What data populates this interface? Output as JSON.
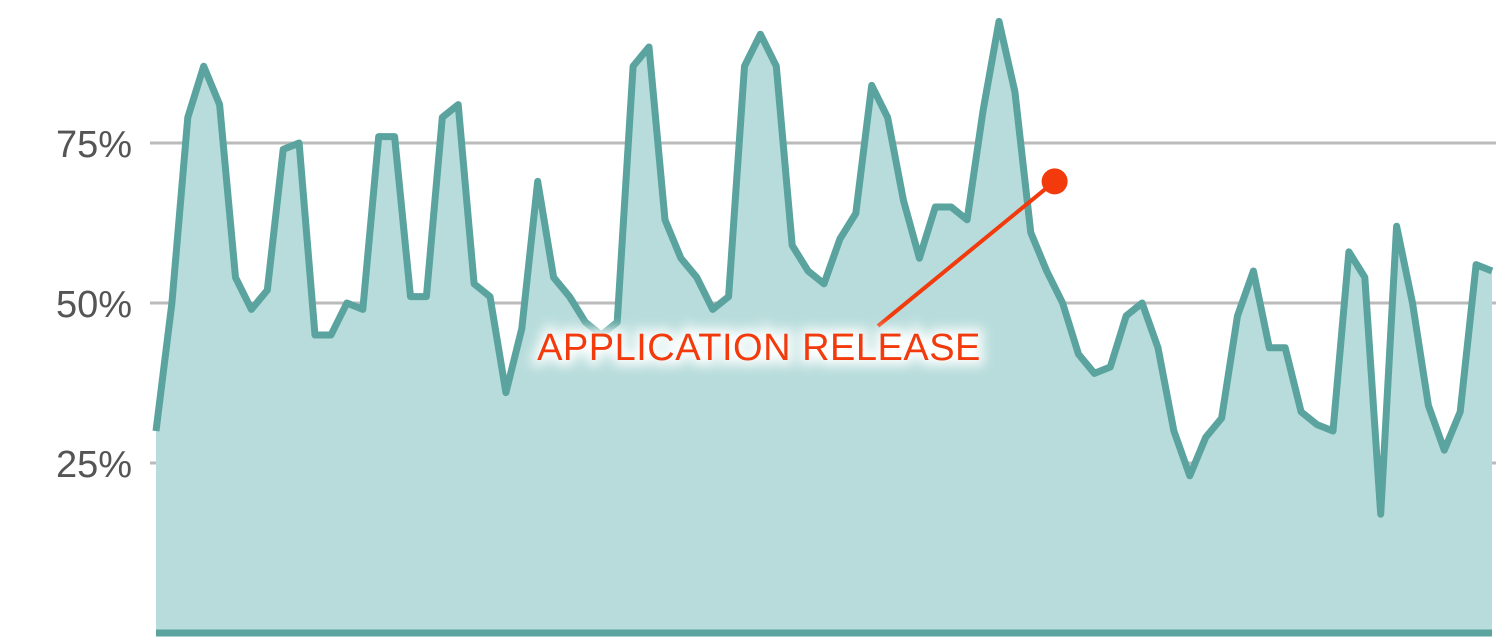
{
  "chart_data": {
    "type": "area",
    "title": "",
    "xlabel": "",
    "ylabel": "",
    "ylim": [
      0,
      100
    ],
    "y_ticks": [
      {
        "value": 25,
        "label": "25%"
      },
      {
        "value": 50,
        "label": "50%"
      },
      {
        "value": 75,
        "label": "75%"
      }
    ],
    "grid": true,
    "legend": "none",
    "colors": {
      "line": "#5aa39f",
      "fill": "#b7dcdb",
      "grid": "#bbbbbb",
      "annotation": "#f23a0c"
    },
    "values": [
      30,
      50,
      79,
      87,
      81,
      54,
      49,
      52,
      74,
      75,
      45,
      45,
      50,
      49,
      76,
      76,
      51,
      51,
      79,
      81,
      53,
      51,
      36,
      46,
      69,
      54,
      51,
      47,
      45,
      47,
      87,
      90,
      63,
      57,
      54,
      49,
      51,
      87,
      92,
      87,
      59,
      55,
      53,
      60,
      64,
      84,
      79,
      66,
      57,
      65,
      65,
      63,
      80,
      94,
      83,
      61,
      55,
      50,
      42,
      39,
      40,
      48,
      50,
      43,
      30,
      23,
      29,
      32,
      48,
      55,
      43,
      43,
      33,
      31,
      30,
      58,
      54,
      17,
      62,
      50,
      34,
      27,
      33,
      56,
      55
    ],
    "annotations": [
      {
        "label": "APPLICATION RELEASE",
        "x_index": 56.5,
        "y": 69
      }
    ]
  }
}
